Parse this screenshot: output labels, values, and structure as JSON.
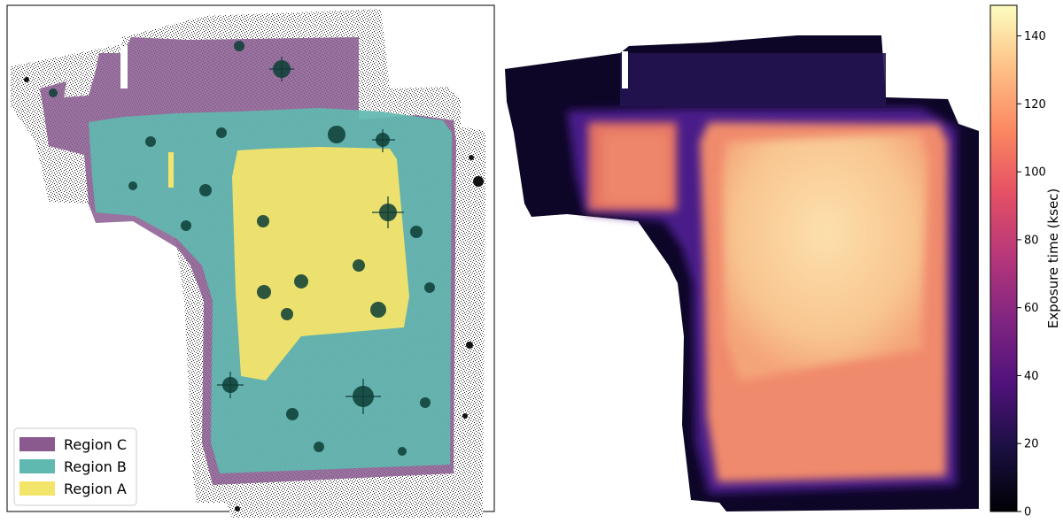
{
  "left_panel": {
    "legend": [
      {
        "label": "Region C",
        "color": "#8a5a8f"
      },
      {
        "label": "Region B",
        "color": "#5fb9b0"
      },
      {
        "label": "Region A",
        "color": "#f3e46a"
      }
    ]
  },
  "right_panel": {
    "colorbar": {
      "label": "Exposure time (ksec)",
      "ticks": [
        "0",
        "20",
        "40",
        "60",
        "80",
        "100",
        "120",
        "140"
      ],
      "range": [
        0,
        149
      ],
      "colormap": "magma"
    }
  },
  "colors": {
    "region_c": "#8a5a8f",
    "region_b": "#5fb9b0",
    "region_a": "#f3e46a",
    "background_noise": "#1a1a1a",
    "exposure_low": "#0a0520",
    "exposure_mid": "#5a2590",
    "exposure_high": "#fbdca6"
  }
}
